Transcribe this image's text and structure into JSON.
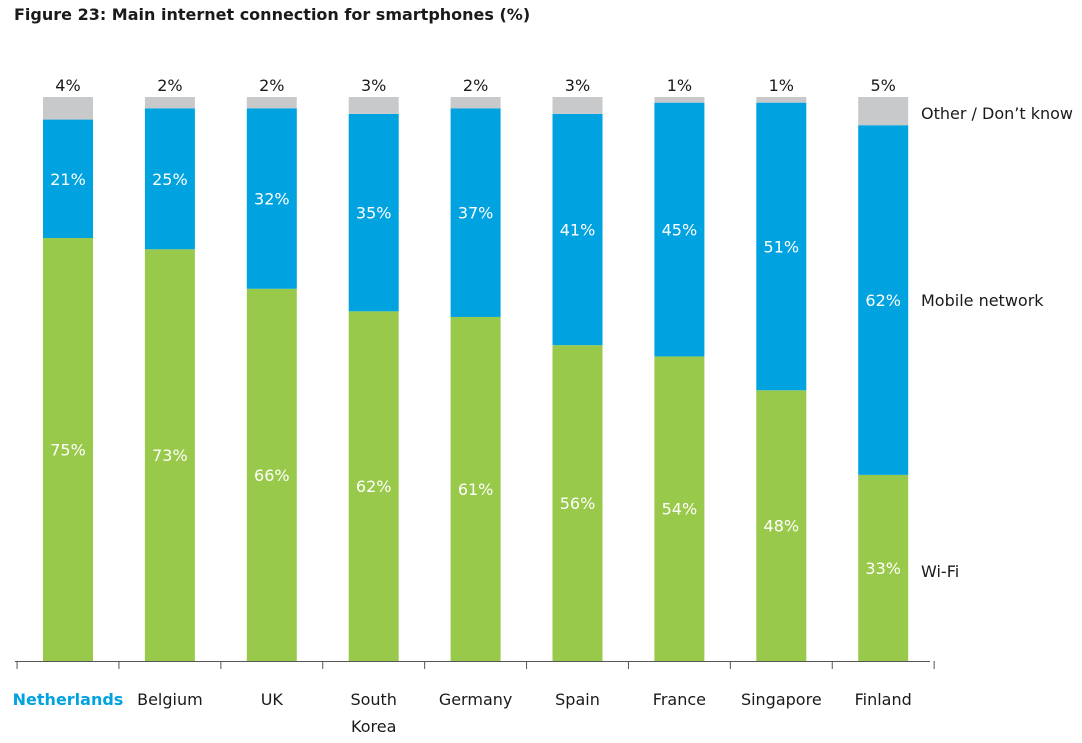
{
  "title": "Figure 23: Main internet connection for smartphones (%)",
  "colors": {
    "wifi": "#99c94a",
    "mobile": "#00a3e0",
    "other": "#c8c9cb",
    "axis": "#555555",
    "selected_category": "#00a3e0"
  },
  "chart_data": {
    "type": "bar",
    "stacked": true,
    "orientation": "vertical",
    "categories": [
      "Netherlands",
      "Belgium",
      "UK",
      "South Korea",
      "Germany",
      "Spain",
      "France",
      "Singapore",
      "Finland"
    ],
    "category_label_lines": [
      [
        "Netherlands"
      ],
      [
        "Belgium"
      ],
      [
        "UK"
      ],
      [
        "South",
        "Korea"
      ],
      [
        "Germany"
      ],
      [
        "Spain"
      ],
      [
        "France"
      ],
      [
        "Singapore"
      ],
      [
        "Finland"
      ]
    ],
    "selected_category": "Netherlands",
    "series": [
      {
        "name": "Wi-Fi",
        "color": "#99c94a",
        "values": [
          75,
          73,
          66,
          62,
          61,
          56,
          54,
          48,
          33
        ],
        "labels": [
          "75%",
          "73%",
          "66%",
          "62%",
          "61%",
          "56%",
          "54%",
          "48%",
          "33%"
        ]
      },
      {
        "name": "Mobile network",
        "color": "#00a3e0",
        "values": [
          21,
          25,
          32,
          35,
          37,
          41,
          45,
          51,
          62
        ],
        "labels": [
          "21%",
          "25%",
          "32%",
          "35%",
          "37%",
          "41%",
          "45%",
          "51%",
          "62%"
        ]
      },
      {
        "name": "Other / Don’t know",
        "color": "#c8c9cb",
        "values": [
          4,
          2,
          2,
          3,
          2,
          3,
          1,
          1,
          5
        ],
        "labels": [
          "4%",
          "2%",
          "2%",
          "3%",
          "2%",
          "3%",
          "1%",
          "1%",
          "5%"
        ]
      }
    ],
    "ylim": [
      0,
      100
    ],
    "y_axis_visible": false,
    "grid": false,
    "legend": "right, inline with series",
    "xlabel": "",
    "ylabel": ""
  }
}
